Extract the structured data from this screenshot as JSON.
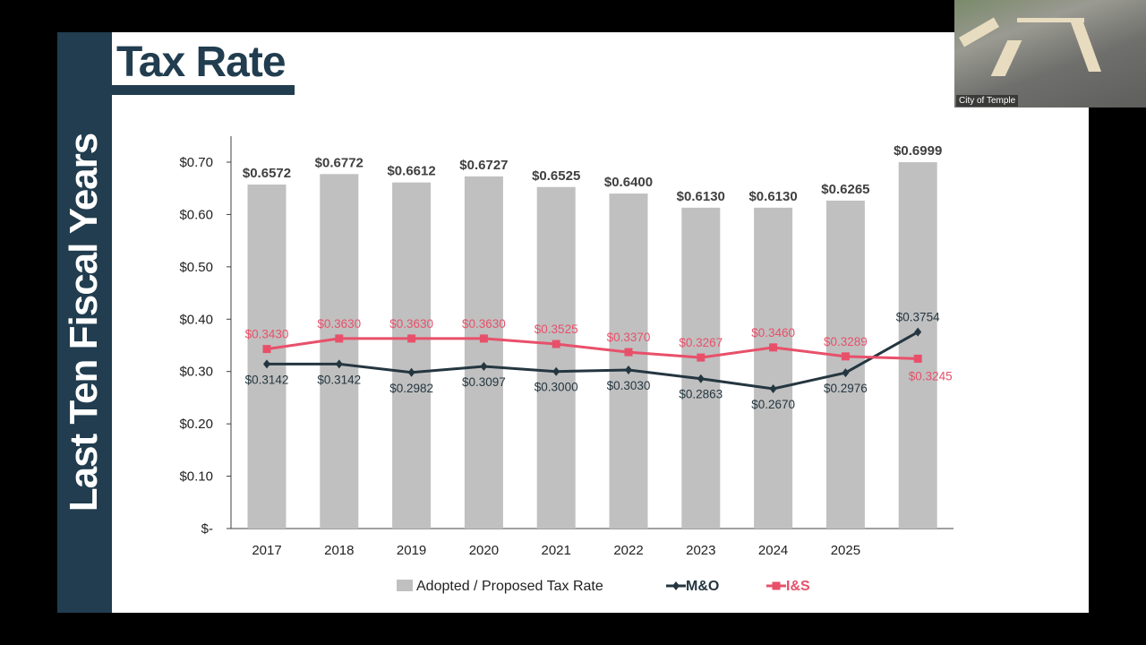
{
  "slide": {
    "title": "Tax Rate",
    "side_label": "Last Ten Fiscal Years"
  },
  "video": {
    "label": "City of Temple"
  },
  "chart_data": {
    "type": "bar+line",
    "categories": [
      "2017",
      "2018",
      "2019",
      "2020",
      "2021",
      "2022",
      "2023",
      "2024",
      "2025",
      ""
    ],
    "ylim": [
      0,
      0.7
    ],
    "yticks": [
      0,
      0.1,
      0.2,
      0.3,
      0.4,
      0.5,
      0.6,
      0.7
    ],
    "ytick_labels": [
      "$-",
      "$0.10",
      "$0.20",
      "$0.30",
      "$0.40",
      "$0.50",
      "$0.60",
      "$0.70"
    ],
    "grid": false,
    "legend_position": "bottom",
    "series": [
      {
        "name": "Adopted / Proposed Tax Rate",
        "kind": "bar",
        "color": "#c0c0c0",
        "label_color": "#404040",
        "values": [
          0.6572,
          0.6772,
          0.6612,
          0.6727,
          0.6525,
          0.64,
          0.613,
          0.613,
          0.6265,
          0.6999
        ],
        "labels": [
          "$0.6572",
          "$0.6772",
          "$0.6612",
          "$0.6727",
          "$0.6525",
          "$0.6400",
          "$0.6130",
          "$0.6130",
          "$0.6265",
          "$0.6999"
        ]
      },
      {
        "name": "M&O",
        "kind": "line",
        "color": "#243640",
        "marker": "diamond",
        "values": [
          0.3142,
          0.3142,
          0.2982,
          0.3097,
          0.3,
          0.303,
          0.2863,
          0.267,
          0.2976,
          0.3754
        ],
        "labels": [
          "$0.3142",
          "$0.3142",
          "$0.2982",
          "$0.3097",
          "$0.3000",
          "$0.3030",
          "$0.2863",
          "$0.2670",
          "$0.2976",
          "$0.3754"
        ]
      },
      {
        "name": "I&S",
        "kind": "line",
        "color": "#e8506a",
        "marker": "square",
        "values": [
          0.343,
          0.363,
          0.363,
          0.363,
          0.3525,
          0.337,
          0.3267,
          0.346,
          0.3289,
          0.3245
        ],
        "labels": [
          "$0.3430",
          "$0.3630",
          "$0.3630",
          "$0.3630",
          "$0.3525",
          "$0.3370",
          "$0.3267",
          "$0.3460",
          "$0.3289",
          "$0.3245"
        ]
      }
    ]
  }
}
